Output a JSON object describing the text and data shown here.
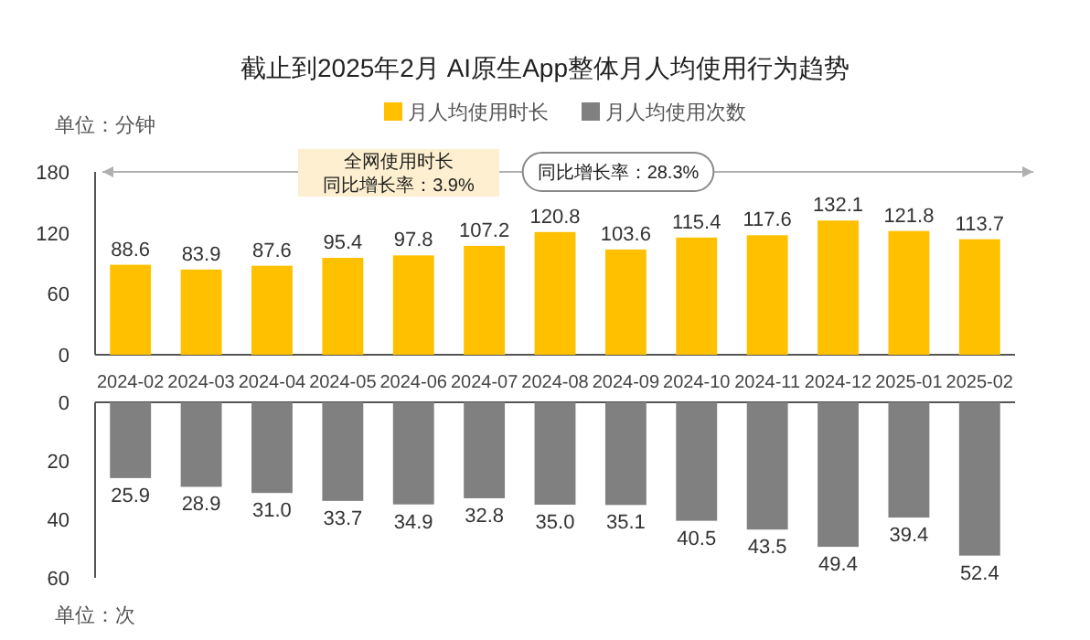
{
  "chart_data": [
    {
      "type": "bar",
      "title": "截止到2025年2月 AI原生App整体月人均使用行为趋势",
      "ylabel": "单位：分钟",
      "categories": [
        "2024-02",
        "2024-03",
        "2024-04",
        "2024-05",
        "2024-06",
        "2024-07",
        "2024-08",
        "2024-09",
        "2024-10",
        "2024-11",
        "2024-12",
        "2025-01",
        "2025-02"
      ],
      "series": [
        {
          "name": "月人均使用时长",
          "color": "#ffc000",
          "values": [
            88.6,
            83.9,
            87.6,
            95.4,
            97.8,
            107.2,
            120.8,
            103.6,
            115.4,
            117.6,
            132.1,
            121.8,
            113.7
          ]
        }
      ],
      "ylim": [
        0,
        180
      ],
      "yticks": [
        0,
        60,
        120,
        180
      ],
      "data_labels": true,
      "legend": "top",
      "ref_lines": [
        {
          "axis": "y",
          "value": 180,
          "color": "#b0b0b0"
        }
      ],
      "annotations": [
        "全网使用时长",
        "同比增长率：3.9%",
        "同比增长率：28.3%"
      ]
    },
    {
      "type": "bar",
      "ylabel": "单位：次",
      "categories": [
        "2024-02",
        "2024-03",
        "2024-04",
        "2024-05",
        "2024-06",
        "2024-07",
        "2024-08",
        "2024-09",
        "2024-10",
        "2024-11",
        "2024-12",
        "2025-01",
        "2025-02"
      ],
      "series": [
        {
          "name": "月人均使用次数",
          "color": "#808080",
          "values": [
            25.9,
            28.9,
            31.0,
            33.7,
            34.9,
            32.8,
            35.0,
            35.1,
            40.5,
            43.5,
            49.4,
            39.4,
            52.4
          ],
          "value_labels": [
            "25.9",
            "28.9",
            "31.0",
            "33.7",
            "34.9",
            "32.8",
            "35.0",
            "35.1",
            "40.5",
            "43.5",
            "49.4",
            "39.4",
            "52.4"
          ]
        }
      ],
      "ylim": [
        60,
        0
      ],
      "yticks": [
        0,
        20,
        40,
        60
      ],
      "legend": "top",
      "tick_labels": "y"
    }
  ]
}
